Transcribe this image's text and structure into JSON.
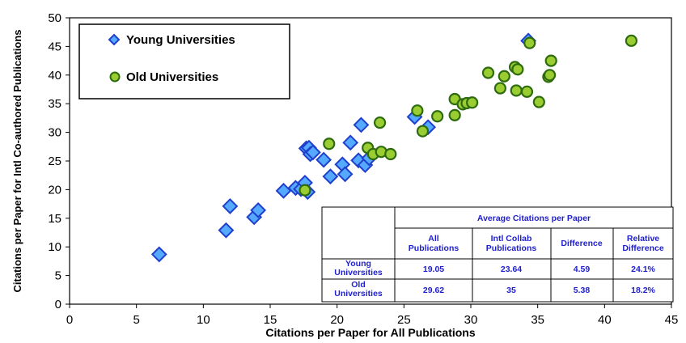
{
  "chart_data": {
    "type": "scatter",
    "xlabel": "Citations per Paper for All Publications",
    "ylabel": "Citations per Paper for Intl Co-authored Publications",
    "xlim": [
      0,
      45
    ],
    "ylim": [
      0,
      50
    ],
    "x_ticks": [
      "0",
      "5",
      "10",
      "15",
      "20",
      "25",
      "30",
      "35",
      "40",
      "45"
    ],
    "y_ticks": [
      "0",
      "5",
      "10",
      "15",
      "20",
      "25",
      "30",
      "35",
      "40",
      "45",
      "50"
    ],
    "grid": false,
    "legend_position": "top-left",
    "series": [
      {
        "name": "Young Universities",
        "marker": "diamond",
        "color": "#55aaff",
        "edge_color": "#1f3fcc",
        "points": [
          [
            6.7,
            8.7
          ],
          [
            11.7,
            12.9
          ],
          [
            12.0,
            17.1
          ],
          [
            13.8,
            15.2
          ],
          [
            14.1,
            16.4
          ],
          [
            16.0,
            19.8
          ],
          [
            16.9,
            20.3
          ],
          [
            17.3,
            20.1
          ],
          [
            17.6,
            21.2
          ],
          [
            17.8,
            19.6
          ],
          [
            17.7,
            27.2
          ],
          [
            17.9,
            27.3
          ],
          [
            18.0,
            26.2
          ],
          [
            18.2,
            26.5
          ],
          [
            19.0,
            25.2
          ],
          [
            19.5,
            22.3
          ],
          [
            20.4,
            24.4
          ],
          [
            20.6,
            22.7
          ],
          [
            21.0,
            28.2
          ],
          [
            21.6,
            25.1
          ],
          [
            21.8,
            31.3
          ],
          [
            22.1,
            24.3
          ],
          [
            22.4,
            25.5
          ],
          [
            25.8,
            32.7
          ],
          [
            26.8,
            30.9
          ],
          [
            34.3,
            46.0
          ]
        ]
      },
      {
        "name": "Old Universities",
        "marker": "circle",
        "color": "#9acd32",
        "edge_color": "#2e6b0e",
        "points": [
          [
            17.6,
            19.9
          ],
          [
            19.4,
            28.0
          ],
          [
            22.3,
            27.3
          ],
          [
            22.7,
            26.2
          ],
          [
            23.3,
            26.6
          ],
          [
            23.2,
            31.7
          ],
          [
            24.0,
            26.2
          ],
          [
            26.0,
            33.8
          ],
          [
            26.4,
            30.2
          ],
          [
            27.5,
            32.8
          ],
          [
            28.8,
            33.0
          ],
          [
            28.8,
            35.8
          ],
          [
            29.4,
            34.9
          ],
          [
            29.7,
            35.1
          ],
          [
            30.1,
            35.2
          ],
          [
            31.3,
            40.4
          ],
          [
            32.2,
            37.7
          ],
          [
            32.5,
            39.8
          ],
          [
            33.3,
            41.4
          ],
          [
            33.5,
            41.0
          ],
          [
            33.4,
            37.3
          ],
          [
            34.2,
            37.1
          ],
          [
            34.4,
            45.6
          ],
          [
            35.1,
            35.3
          ],
          [
            35.8,
            39.7
          ],
          [
            35.9,
            40.0
          ],
          [
            36.0,
            42.5
          ],
          [
            42.0,
            46.0
          ]
        ]
      }
    ],
    "table": {
      "title": "Average Citations per Paper",
      "columns": [
        "All Publications",
        "Intl Collab Publications",
        "Difference",
        "Relative Difference"
      ],
      "rows": [
        {
          "label": "Young Universities",
          "values": [
            "19.05",
            "23.64",
            "4.59",
            "24.1%"
          ]
        },
        {
          "label": "Old Universities",
          "values": [
            "29.62",
            "35",
            "5.38",
            "18.2%"
          ]
        }
      ]
    }
  }
}
